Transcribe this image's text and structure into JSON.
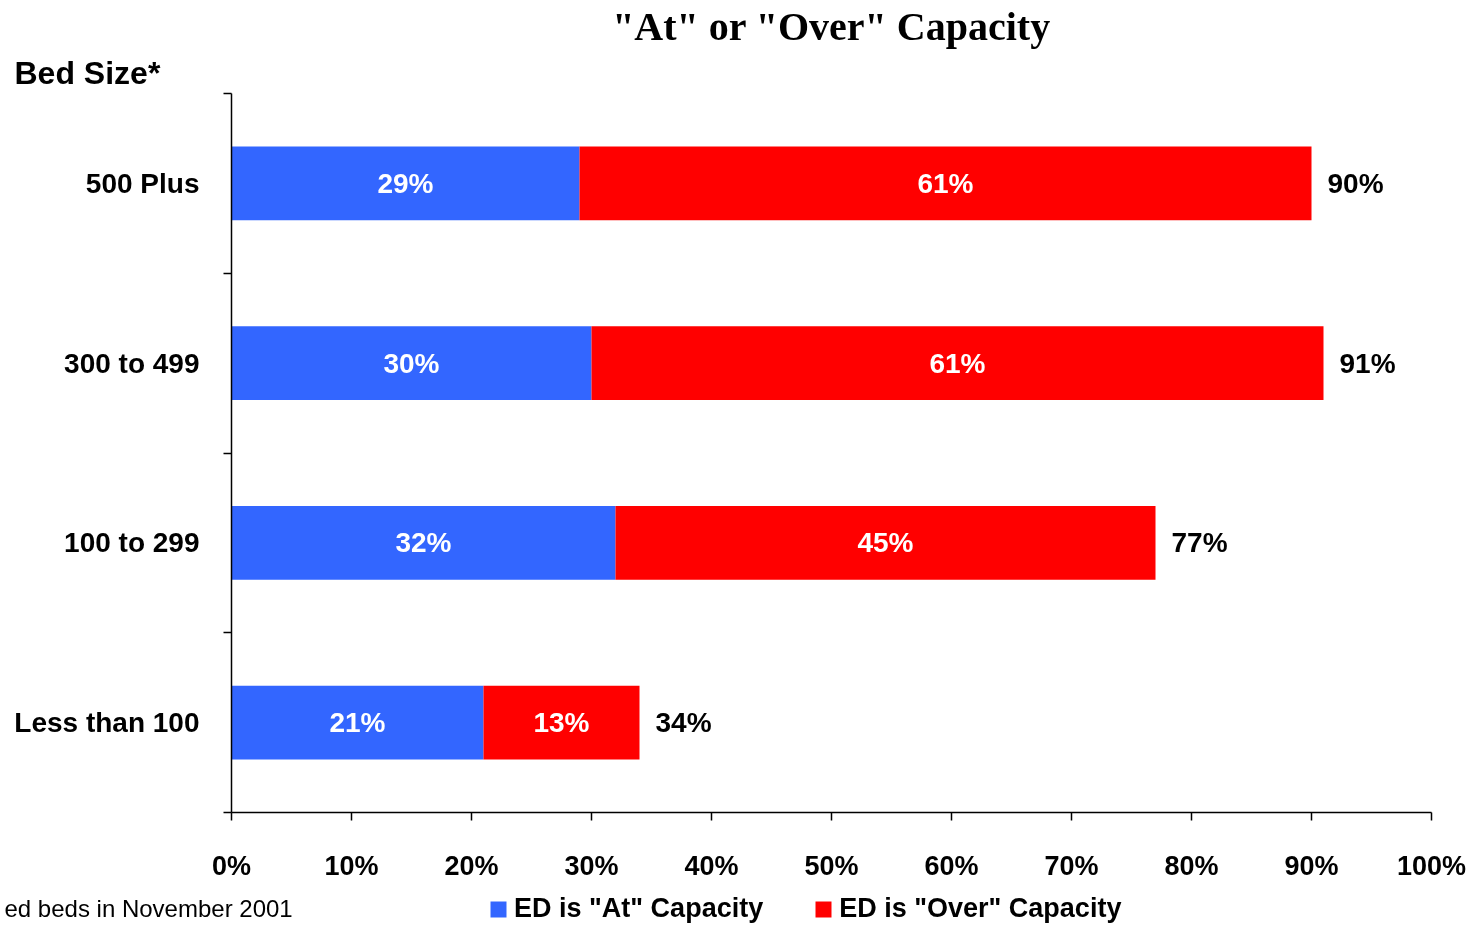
{
  "chart_data": {
    "type": "bar",
    "orientation": "horizontal",
    "stacked": true,
    "title": "\"At\" or \"Over\" Capacity",
    "ylabel": "Bed Size*",
    "annotations": [
      "ed beds in November 2001"
    ],
    "categories": [
      "500 Plus",
      "300 to 499",
      "100 to 299",
      "Less than 100"
    ],
    "series": [
      {
        "name": "ED is \"At\" Capacity",
        "color": "#3366ff",
        "values": [
          29,
          30,
          32,
          21
        ],
        "value_labels": [
          "29%",
          "30%",
          "32%",
          "21%"
        ]
      },
      {
        "name": "ED is \"Over\" Capacity",
        "color": "#ff0000",
        "values": [
          61,
          61,
          45,
          13
        ],
        "value_labels": [
          "61%",
          "61%",
          "45%",
          "13%"
        ]
      }
    ],
    "totals": [
      "90%",
      "91%",
      "77%",
      "34%"
    ],
    "xlim": [
      0,
      100
    ],
    "xticks": [
      {
        "value": 0,
        "label": "0%"
      },
      {
        "value": 10,
        "label": "10%"
      },
      {
        "value": 20,
        "label": "20%"
      },
      {
        "value": 30,
        "label": "30%"
      },
      {
        "value": 40,
        "label": "40%"
      },
      {
        "value": 50,
        "label": "50%"
      },
      {
        "value": 60,
        "label": "60%"
      },
      {
        "value": 70,
        "label": "70%"
      },
      {
        "value": 80,
        "label": "80%"
      },
      {
        "value": 90,
        "label": "90%"
      },
      {
        "value": 100,
        "label": "100%"
      }
    ],
    "legend": "bottom"
  }
}
